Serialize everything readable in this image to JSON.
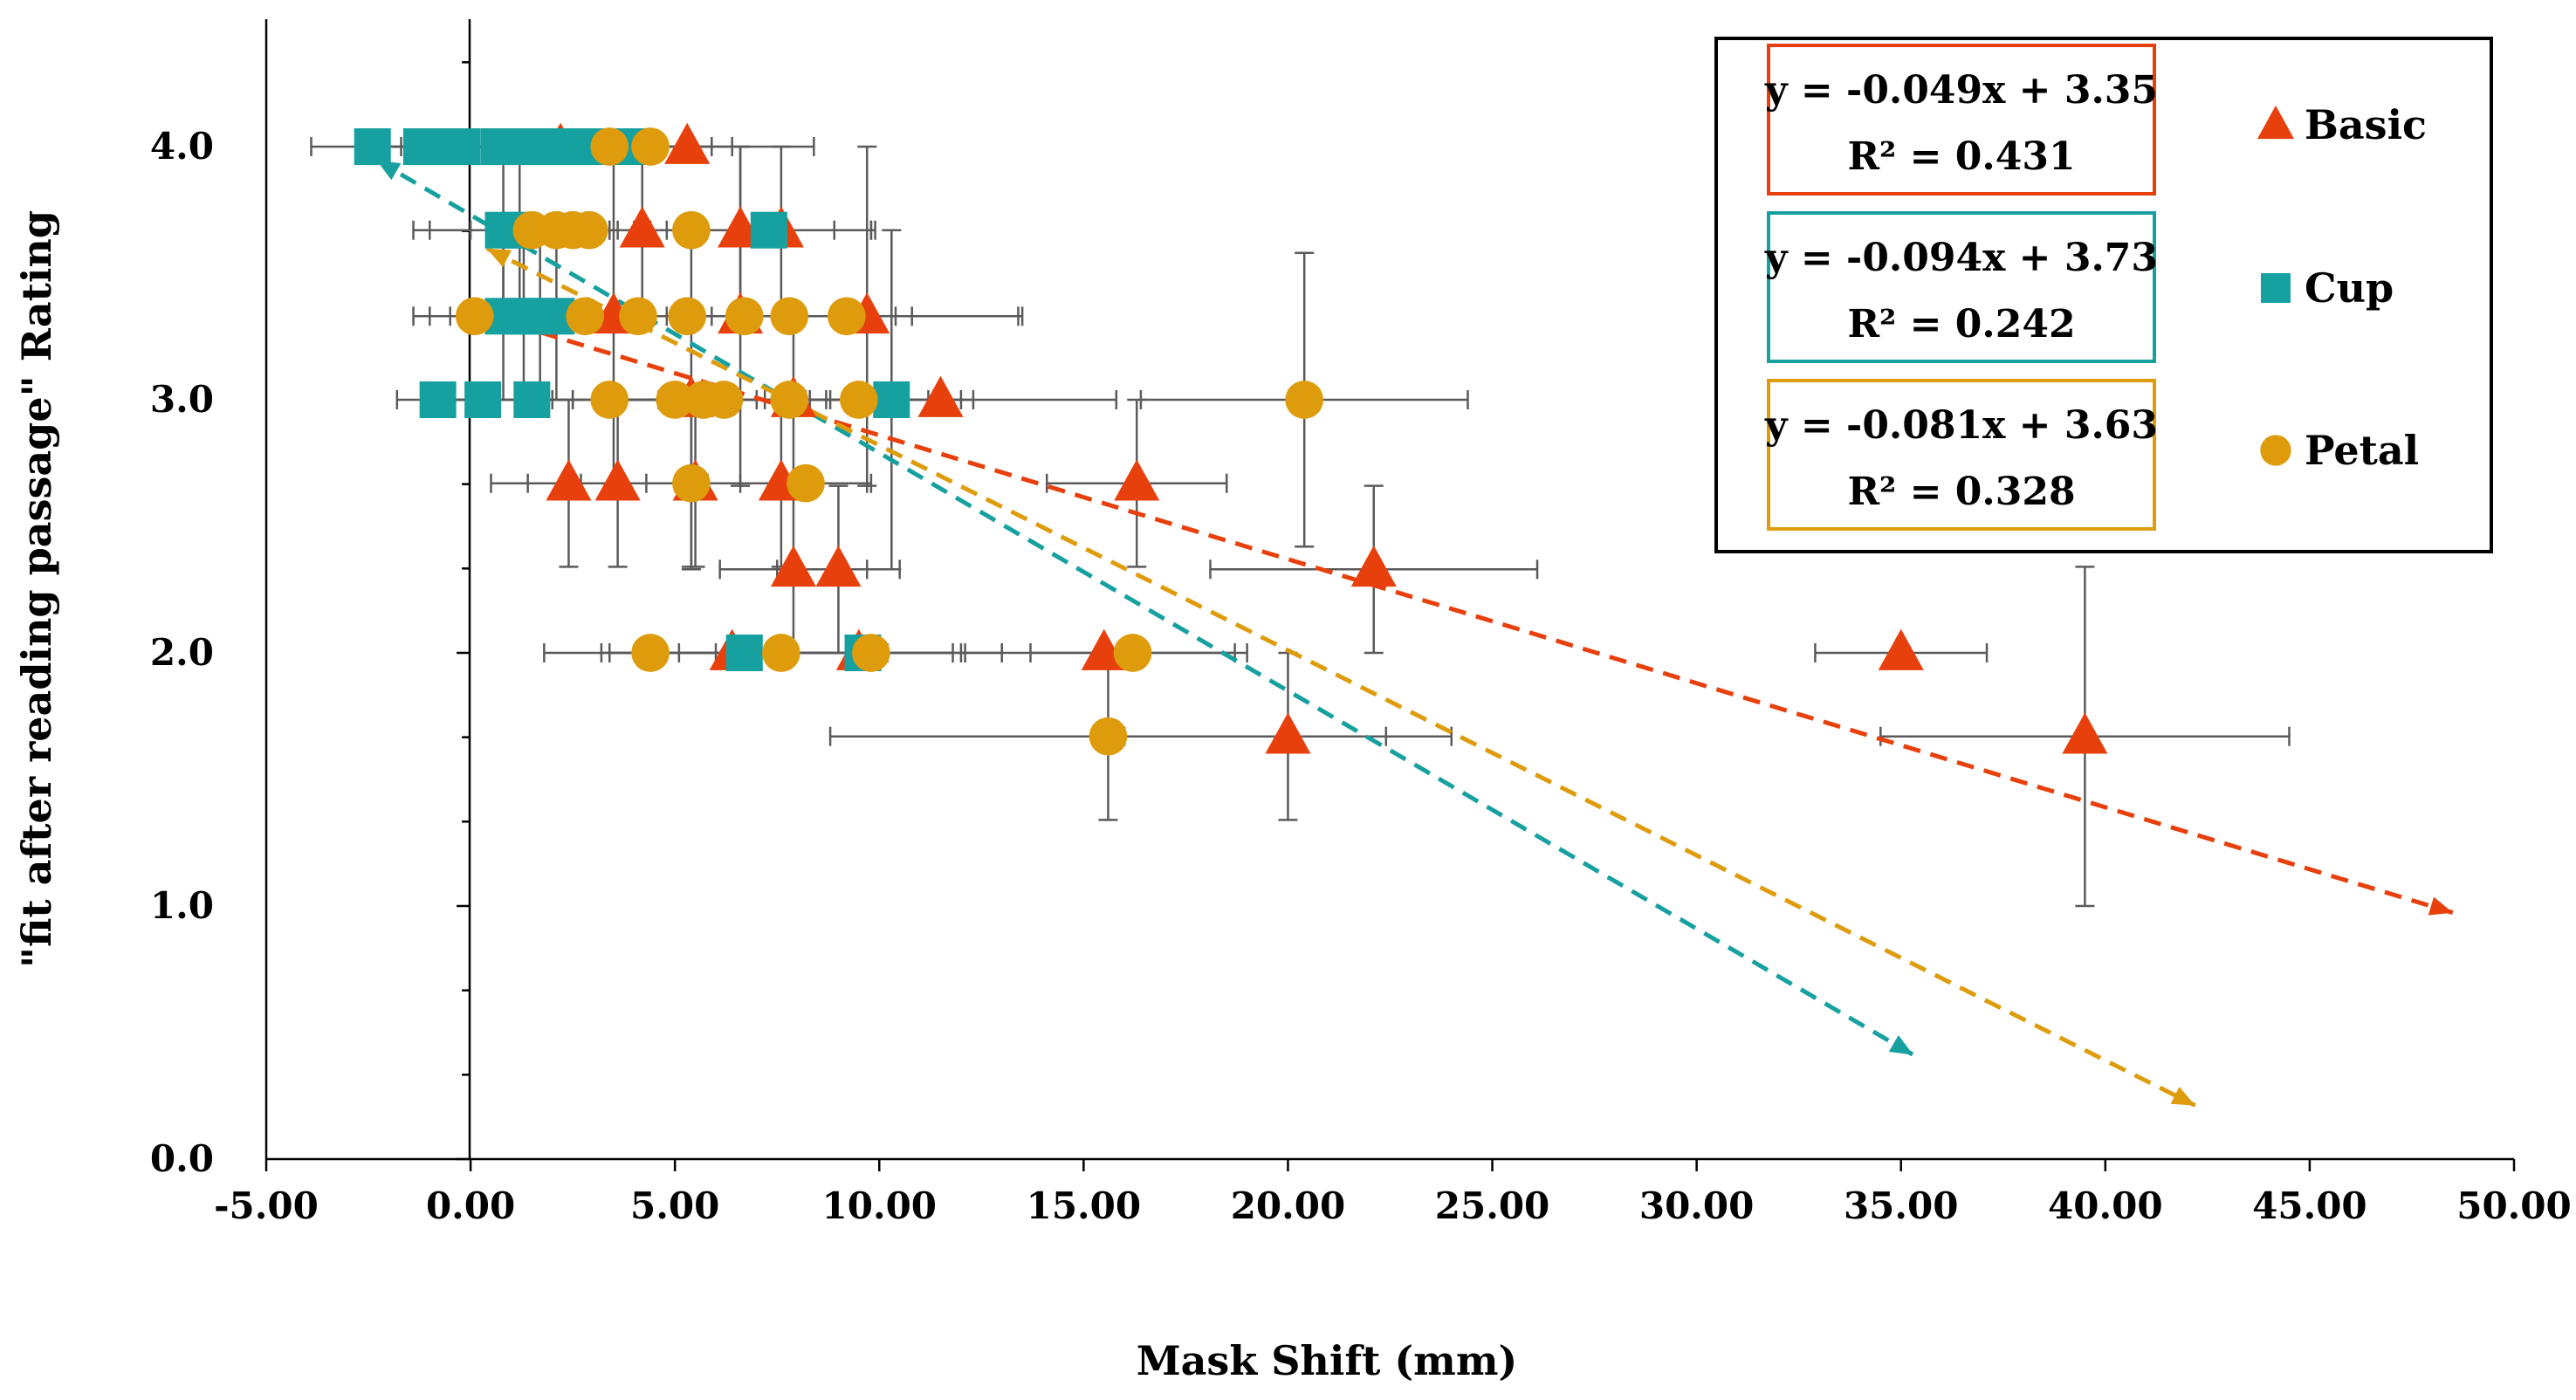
{
  "chart_data": {
    "type": "scatter",
    "title": "",
    "xlabel": "Mask Shift (mm)",
    "ylabel": "\"fit after reading passage\" Rating",
    "xlim": [
      -5,
      50
    ],
    "ylim": [
      0,
      4.4
    ],
    "x_ticks": [
      -5,
      0,
      5,
      10,
      15,
      20,
      25,
      30,
      35,
      40,
      45,
      50
    ],
    "x_tick_labels": [
      "-5.00",
      "0.00",
      "5.00",
      "10.00",
      "15.00",
      "20.00",
      "25.00",
      "30.00",
      "35.00",
      "40.00",
      "45.00",
      "50.00"
    ],
    "y_ticks": [
      0,
      1,
      2,
      3,
      4
    ],
    "y_tick_labels": [
      "0.0",
      "1.0",
      "2.0",
      "3.0",
      "4.0"
    ],
    "grid": false,
    "legend_position": "top-right",
    "series": [
      {
        "name": "Basic",
        "marker": "triangle",
        "color": "#E8400C",
        "trend_color": "#E8400C",
        "equation": "y = -0.049x + 3.35",
        "r2": "R² = 0.431",
        "trend": {
          "x_start": 0.4,
          "x_end": 48.5,
          "slope": -0.049,
          "intercept": 3.35
        },
        "points": [
          {
            "x": 5.3,
            "y": 4.0,
            "xerr": 3.1,
            "yerr": 0
          },
          {
            "x": 2.2,
            "y": 4.0,
            "xerr": 1.5,
            "yerr": 0
          },
          {
            "x": 4.2,
            "y": 3.67,
            "xerr": 3.0,
            "yerr": 0.33
          },
          {
            "x": 6.6,
            "y": 3.67,
            "xerr": 3.2,
            "yerr": 0.33
          },
          {
            "x": 7.6,
            "y": 3.67,
            "xerr": 2.3,
            "yerr": 0.33
          },
          {
            "x": 3.5,
            "y": 3.33,
            "xerr": 2.0,
            "yerr": 0.67
          },
          {
            "x": 6.6,
            "y": 3.33,
            "xerr": 3.8,
            "yerr": 0.67
          },
          {
            "x": 9.7,
            "y": 3.33,
            "xerr": 3.8,
            "yerr": 0.67
          },
          {
            "x": 5.4,
            "y": 3.0,
            "xerr": 3.4,
            "yerr": 0.67
          },
          {
            "x": 7.9,
            "y": 3.0,
            "xerr": 3.3,
            "yerr": 0.33
          },
          {
            "x": 11.5,
            "y": 3.0,
            "xerr": 4.3,
            "yerr": 0
          },
          {
            "x": 2.4,
            "y": 2.67,
            "xerr": 1.9,
            "yerr": 0.33
          },
          {
            "x": 3.6,
            "y": 2.67,
            "xerr": 2.2,
            "yerr": 0.33
          },
          {
            "x": 5.5,
            "y": 2.67,
            "xerr": 2.8,
            "yerr": 0.33
          },
          {
            "x": 7.6,
            "y": 2.67,
            "xerr": 2.1,
            "yerr": 0.33
          },
          {
            "x": 16.3,
            "y": 2.67,
            "xerr": 2.2,
            "yerr": 0.33
          },
          {
            "x": 7.9,
            "y": 2.33,
            "xerr": 1.8,
            "yerr": 0.33
          },
          {
            "x": 9.0,
            "y": 2.33,
            "xerr": 1.5,
            "yerr": 0.33
          },
          {
            "x": 22.1,
            "y": 2.33,
            "xerr": 4.0,
            "yerr": 0.33
          },
          {
            "x": 6.4,
            "y": 2.0,
            "xerr": 3.0,
            "yerr": 0
          },
          {
            "x": 9.5,
            "y": 2.0,
            "xerr": 3.5,
            "yerr": 0
          },
          {
            "x": 15.5,
            "y": 2.0,
            "xerr": 3.5,
            "yerr": 0
          },
          {
            "x": 35.0,
            "y": 2.0,
            "xerr": 2.1,
            "yerr": 0
          },
          {
            "x": 20.0,
            "y": 1.67,
            "xerr": 4.0,
            "yerr": 0.33
          },
          {
            "x": 39.5,
            "y": 1.67,
            "xerr": 5.0,
            "yerr": 0.67
          }
        ]
      },
      {
        "name": "Cup",
        "marker": "square",
        "color": "#17A0A0",
        "trend_color": "#17A0A0",
        "equation": "y = -0.094x + 3.73",
        "r2": "R² = 0.242",
        "trend": {
          "x_start": -2.3,
          "x_end": 35.3,
          "slope": -0.094,
          "intercept": 3.73
        },
        "points": [
          {
            "x": -2.4,
            "y": 4.0,
            "xerr": 1.5,
            "yerr": 0
          },
          {
            "x": -1.2,
            "y": 4.0,
            "xerr": 1.5,
            "yerr": 0
          },
          {
            "x": -0.7,
            "y": 4.0,
            "xerr": 1.5,
            "yerr": 0
          },
          {
            "x": -0.2,
            "y": 4.0,
            "xerr": 1.5,
            "yerr": 0
          },
          {
            "x": 0.7,
            "y": 4.0,
            "xerr": 2.0,
            "yerr": 0
          },
          {
            "x": 1.1,
            "y": 4.0,
            "xerr": 2.0,
            "yerr": 0
          },
          {
            "x": 1.5,
            "y": 4.0,
            "xerr": 2.0,
            "yerr": 0
          },
          {
            "x": 2.1,
            "y": 4.0,
            "xerr": 2.0,
            "yerr": 0
          },
          {
            "x": 2.7,
            "y": 4.0,
            "xerr": 2.0,
            "yerr": 0
          },
          {
            "x": 3.3,
            "y": 4.0,
            "xerr": 2.0,
            "yerr": 0
          },
          {
            "x": 3.9,
            "y": 4.0,
            "xerr": 2.0,
            "yerr": 0
          },
          {
            "x": 0.8,
            "y": 3.67,
            "xerr": 2.2,
            "yerr": 0.33
          },
          {
            "x": 1.2,
            "y": 3.67,
            "xerr": 2.2,
            "yerr": 0.33
          },
          {
            "x": 7.3,
            "y": 3.67,
            "xerr": 2.5,
            "yerr": 0
          },
          {
            "x": 0.8,
            "y": 3.33,
            "xerr": 1.8,
            "yerr": 0.33
          },
          {
            "x": 1.3,
            "y": 3.33,
            "xerr": 1.8,
            "yerr": 0.33
          },
          {
            "x": 1.7,
            "y": 3.33,
            "xerr": 1.8,
            "yerr": 0.33
          },
          {
            "x": 2.1,
            "y": 3.33,
            "xerr": 1.8,
            "yerr": 0.33
          },
          {
            "x": -0.8,
            "y": 3.0,
            "xerr": 1.0,
            "yerr": 0
          },
          {
            "x": 0.3,
            "y": 3.0,
            "xerr": 1.0,
            "yerr": 0
          },
          {
            "x": 1.5,
            "y": 3.0,
            "xerr": 1.0,
            "yerr": 0
          },
          {
            "x": 10.3,
            "y": 3.0,
            "xerr": 2.0,
            "yerr": 0.67
          },
          {
            "x": 6.7,
            "y": 2.0,
            "xerr": 3.5,
            "yerr": 0
          },
          {
            "x": 9.6,
            "y": 2.0,
            "xerr": 2.5,
            "yerr": 0
          }
        ]
      },
      {
        "name": "Petal",
        "marker": "circle",
        "color": "#DE9C0C",
        "trend_color": "#DE9C0C",
        "equation": "y = -0.081x + 3.63",
        "r2": "R² = 0.328",
        "trend": {
          "x_start": 0.4,
          "x_end": 42.2,
          "slope": -0.081,
          "intercept": 3.63
        },
        "points": [
          {
            "x": 3.4,
            "y": 4.0,
            "xerr": 2.0,
            "yerr": 0
          },
          {
            "x": 4.4,
            "y": 4.0,
            "xerr": 2.0,
            "yerr": 0
          },
          {
            "x": 1.5,
            "y": 3.67,
            "xerr": 1.5,
            "yerr": 0
          },
          {
            "x": 2.1,
            "y": 3.67,
            "xerr": 1.5,
            "yerr": 0
          },
          {
            "x": 2.5,
            "y": 3.67,
            "xerr": 1.5,
            "yerr": 0
          },
          {
            "x": 2.9,
            "y": 3.67,
            "xerr": 1.5,
            "yerr": 0
          },
          {
            "x": 5.4,
            "y": 3.67,
            "xerr": 3.5,
            "yerr": 0
          },
          {
            "x": 0.1,
            "y": 3.33,
            "xerr": 1.5,
            "yerr": 0
          },
          {
            "x": 2.8,
            "y": 3.33,
            "xerr": 2.5,
            "yerr": 0
          },
          {
            "x": 4.1,
            "y": 3.33,
            "xerr": 2.5,
            "yerr": 0
          },
          {
            "x": 5.3,
            "y": 3.33,
            "xerr": 2.5,
            "yerr": 0
          },
          {
            "x": 6.7,
            "y": 3.33,
            "xerr": 3.0,
            "yerr": 0
          },
          {
            "x": 7.8,
            "y": 3.33,
            "xerr": 3.0,
            "yerr": 0
          },
          {
            "x": 9.2,
            "y": 3.33,
            "xerr": 4.2,
            "yerr": 0
          },
          {
            "x": 3.4,
            "y": 3.0,
            "xerr": 2.0,
            "yerr": 0
          },
          {
            "x": 5.0,
            "y": 3.0,
            "xerr": 2.5,
            "yerr": 0
          },
          {
            "x": 5.7,
            "y": 3.0,
            "xerr": 2.5,
            "yerr": 0
          },
          {
            "x": 6.2,
            "y": 3.0,
            "xerr": 2.5,
            "yerr": 0
          },
          {
            "x": 7.8,
            "y": 3.0,
            "xerr": 2.5,
            "yerr": 0
          },
          {
            "x": 9.5,
            "y": 3.0,
            "xerr": 2.5,
            "yerr": 0
          },
          {
            "x": 20.4,
            "y": 3.0,
            "xerr": 4.0,
            "yerr": 0.58
          },
          {
            "x": 5.4,
            "y": 2.67,
            "xerr": 3.0,
            "yerr": 0.33
          },
          {
            "x": 8.2,
            "y": 2.67,
            "xerr": 1.6,
            "yerr": 0
          },
          {
            "x": 4.4,
            "y": 2.0,
            "xerr": 2.6,
            "yerr": 0
          },
          {
            "x": 7.6,
            "y": 2.0,
            "xerr": 2.5,
            "yerr": 0
          },
          {
            "x": 9.8,
            "y": 2.0,
            "xerr": 2.0,
            "yerr": 0
          },
          {
            "x": 16.2,
            "y": 2.0,
            "xerr": 2.5,
            "yerr": 0
          },
          {
            "x": 15.6,
            "y": 1.67,
            "xerr": 6.8,
            "yerr": 0.33
          }
        ]
      }
    ]
  }
}
